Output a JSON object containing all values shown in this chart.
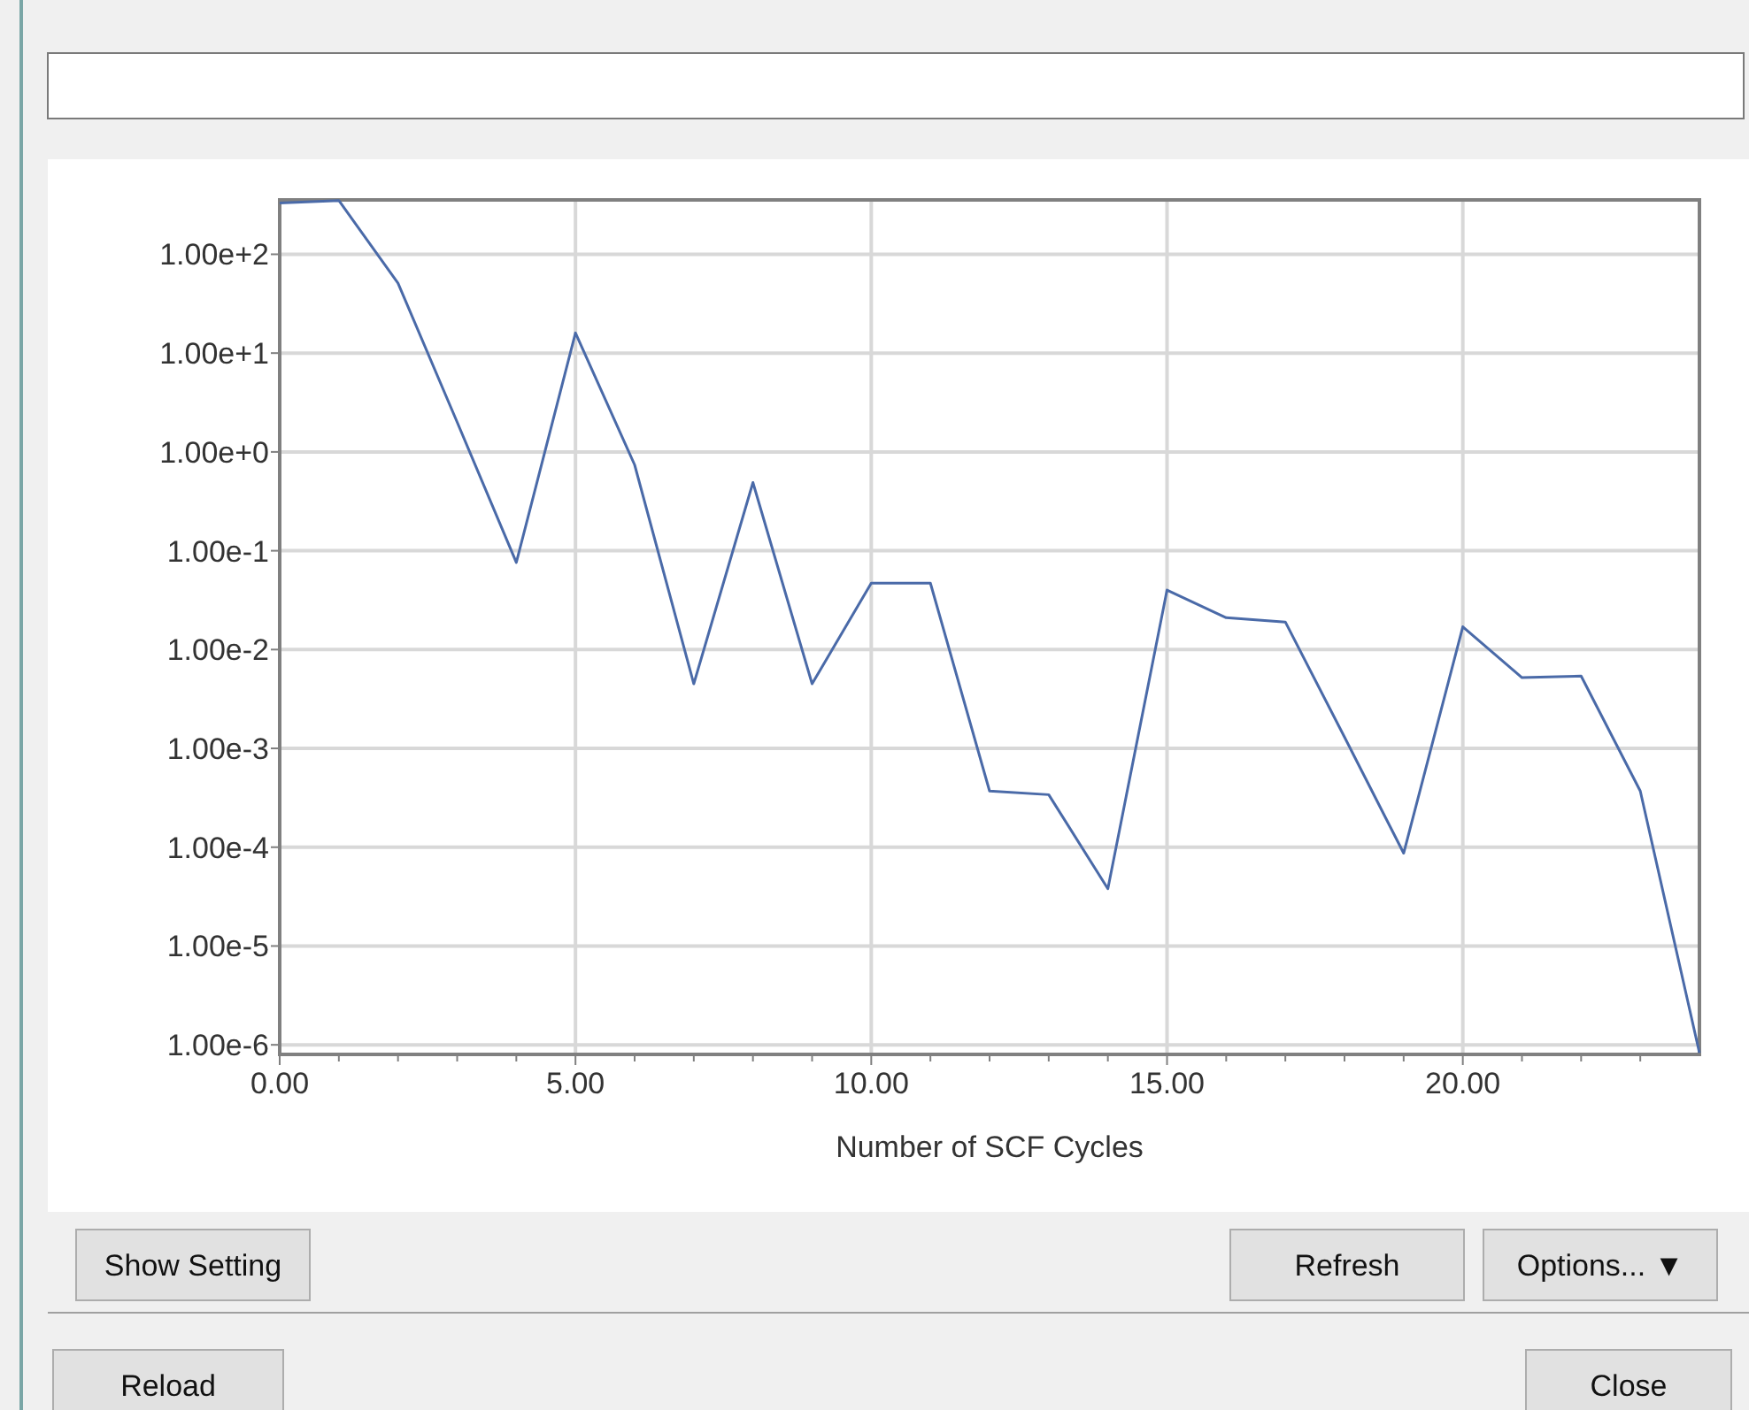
{
  "chart_data": {
    "type": "line",
    "xlabel": "Number of SCF Cycles",
    "x": [
      0,
      1,
      2,
      3,
      4,
      5,
      6,
      7,
      8,
      9,
      10,
      11,
      12,
      13,
      14,
      15,
      16,
      17,
      18,
      19,
      20,
      21,
      22,
      23,
      24
    ],
    "series": [
      {
        "color": "#4a6aa8",
        "values": [
          330,
          350,
          51,
          2.0,
          0.076,
          16,
          0.74,
          0.0045,
          0.49,
          0.0045,
          0.047,
          0.047,
          0.00037,
          0.00034,
          3.8e-05,
          0.04,
          0.021,
          0.019,
          0.0013,
          8.7e-05,
          0.017,
          0.0052,
          0.0054,
          0.00037,
          8.3e-07
        ]
      }
    ],
    "log": "y",
    "xlim": [
      0,
      24
    ],
    "ylim": [
      8e-07,
      355
    ],
    "xticks": [
      {
        "value": 0,
        "label": "0.00"
      },
      {
        "value": 1,
        "label": null
      },
      {
        "value": 2,
        "label": null
      },
      {
        "value": 3,
        "label": null
      },
      {
        "value": 4,
        "label": null
      },
      {
        "value": 5,
        "label": "5.00"
      },
      {
        "value": 6,
        "label": null
      },
      {
        "value": 7,
        "label": null
      },
      {
        "value": 8,
        "label": null
      },
      {
        "value": 9,
        "label": null
      },
      {
        "value": 10,
        "label": "10.00"
      },
      {
        "value": 11,
        "label": null
      },
      {
        "value": 12,
        "label": null
      },
      {
        "value": 13,
        "label": null
      },
      {
        "value": 14,
        "label": null
      },
      {
        "value": 15,
        "label": "15.00"
      },
      {
        "value": 16,
        "label": null
      },
      {
        "value": 17,
        "label": null
      },
      {
        "value": 18,
        "label": null
      },
      {
        "value": 19,
        "label": null
      },
      {
        "value": 20,
        "label": "20.00"
      },
      {
        "value": 21,
        "label": null
      },
      {
        "value": 22,
        "label": null
      },
      {
        "value": 23,
        "label": null
      }
    ],
    "yticks": [
      {
        "value": 100,
        "label": "1.00e+2"
      },
      {
        "value": 10,
        "label": "1.00e+1"
      },
      {
        "value": 1,
        "label": "1.00e+0"
      },
      {
        "value": 0.1,
        "label": "1.00e-1"
      },
      {
        "value": 0.01,
        "label": "1.00e-2"
      },
      {
        "value": 0.001,
        "label": "1.00e-3"
      },
      {
        "value": 0.0001,
        "label": "1.00e-4"
      },
      {
        "value": 1e-05,
        "label": "1.00e-5"
      },
      {
        "value": 1e-06,
        "label": "1.00e-6"
      }
    ],
    "grid": true,
    "marker": "none",
    "line_style": "solid",
    "annotations": [
      "Show Setting",
      "Refresh",
      "Options... ▼",
      "Reload",
      "Close"
    ]
  }
}
